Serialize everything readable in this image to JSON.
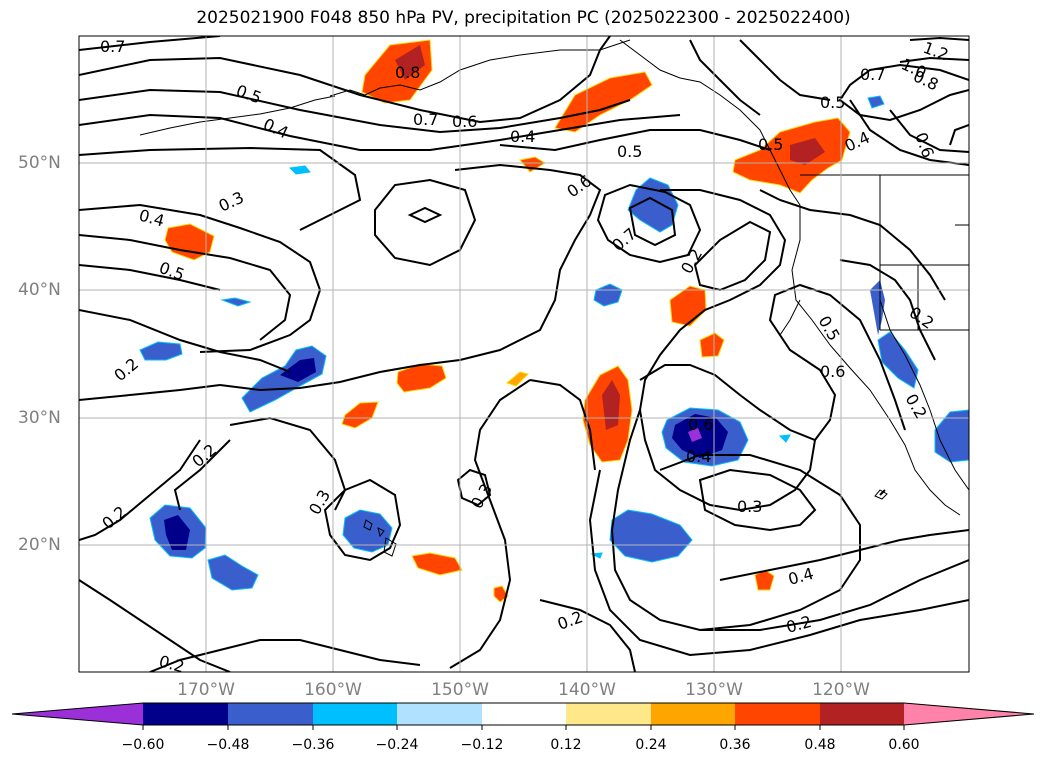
{
  "title": "2025021900 F048 850 hPa PV, precipitation PC (2025022300 - 2025022400)",
  "lat_labels": [
    "50°N",
    "40°N",
    "30°N",
    "20°N"
  ],
  "lon_labels": [
    "170°W",
    "160°W",
    "150°W",
    "140°W",
    "130°W",
    "120°W"
  ],
  "colorbar": {
    "tick_labels": [
      "−0.60",
      "−0.48",
      "−0.36",
      "−0.24",
      "−0.12",
      "0.12",
      "0.24",
      "0.36",
      "0.48",
      "0.60"
    ],
    "colors": [
      "#9b30d8",
      "#00008b",
      "#3a5fcd",
      "#00bfff",
      "#b0e2ff",
      "#ffffff",
      "#ffe88a",
      "#ffa500",
      "#ff4500",
      "#b22222",
      "#ff82ab"
    ],
    "extend": "both"
  },
  "contour_labels": [
    "0.7",
    "0.8",
    "0.5",
    "0.4",
    "0.7",
    "0.6",
    "0.4",
    "0.5",
    "0.6",
    "0.7",
    "0.5",
    "1.2",
    "1.0",
    "0.8",
    "0.7",
    "0.5",
    "0.6",
    "0.4",
    "0.3",
    "0.4",
    "0.5",
    "0.2",
    "0.2",
    "0.5",
    "0.6",
    "0.2",
    "0.2",
    "0.2",
    "0.3",
    "0.3",
    "0.4",
    "0.6",
    "0.3",
    "0.4",
    "0.2",
    "0.2",
    "0.2",
    "0.2"
  ],
  "colors": {
    "grid": "#b3b3b3",
    "contour": "#000000",
    "axis_label": "#808080"
  }
}
